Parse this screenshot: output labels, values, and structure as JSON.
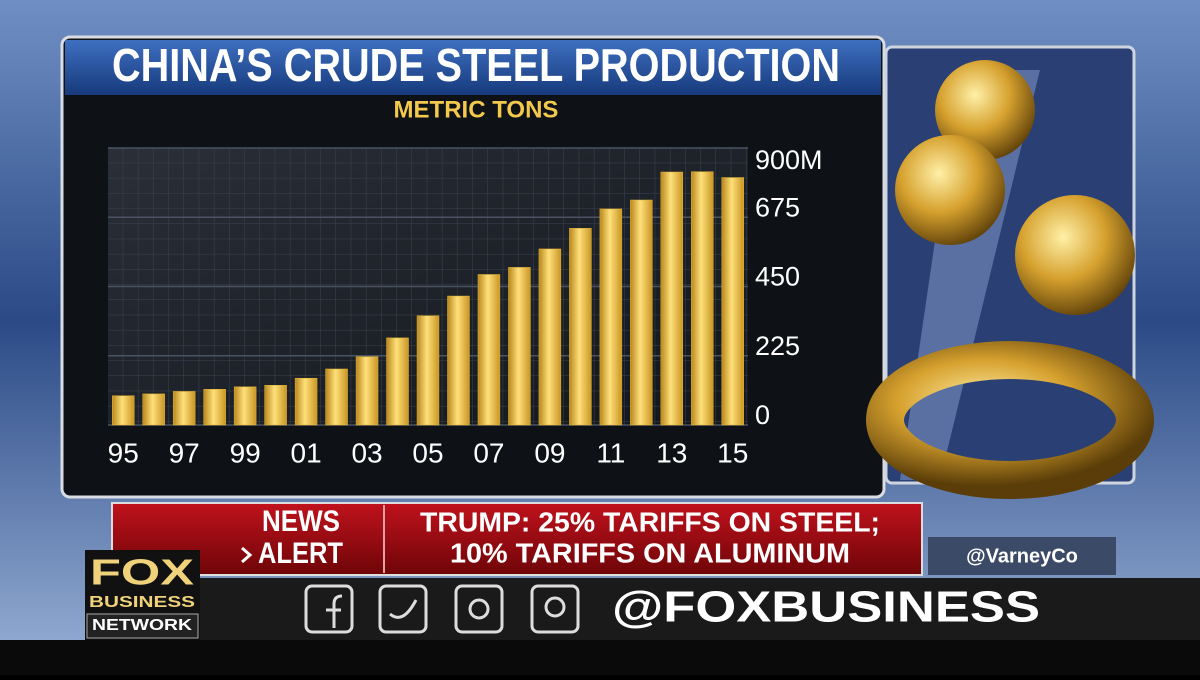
{
  "chart_data": {
    "type": "bar",
    "title": "CHINA’S CRUDE STEEL PRODUCTION",
    "subtitle": "METRIC TONS",
    "categories": [
      "95",
      null,
      "97",
      null,
      "99",
      null,
      "01",
      null,
      "03",
      null,
      "05",
      null,
      "07",
      null,
      "09",
      null,
      "11",
      null,
      "13",
      null,
      "15"
    ],
    "values": [
      95,
      101,
      109,
      116,
      124,
      129,
      152,
      182,
      222,
      283,
      355,
      419,
      489,
      512,
      572,
      639,
      702,
      731,
      822,
      823,
      804
    ],
    "color": "#e8b830",
    "ylim": [
      0,
      900
    ],
    "yticks": [
      0,
      225,
      450,
      675,
      {
        "value": 900,
        "label": "900M"
      }
    ],
    "grid": true
  },
  "news_alert": {
    "label_top": "NEWS",
    "label_bottom": "ALERT",
    "headline": [
      "TRUMP: 25% TARIFFS ON STEEL;",
      "10% TARIFFS ON ALUMINUM"
    ]
  },
  "handle": "@VarneyCo",
  "logo": {
    "lines": [
      "FOX",
      "BUSINESS",
      "NETWORK"
    ]
  },
  "social": "@FOXBUSINESS"
}
